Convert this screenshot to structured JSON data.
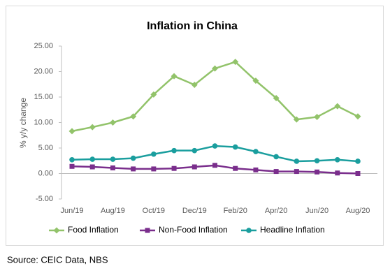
{
  "chart_data": {
    "type": "line",
    "title": "Inflation in China",
    "y_label": "% y/y change",
    "categories": [
      "Jun/19",
      null,
      "Aug/19",
      null,
      "Oct/19",
      null,
      "Dec/19",
      null,
      "Feb/20",
      null,
      "Apr/20",
      null,
      "Jun/20",
      null,
      "Aug/20"
    ],
    "series": [
      {
        "name": "Food Inflation",
        "color": "#92c36a",
        "marker": "diamond",
        "values": [
          8.3,
          9.1,
          10.0,
          11.2,
          15.5,
          19.1,
          17.4,
          20.6,
          21.9,
          18.2,
          14.8,
          10.6,
          11.1,
          13.2,
          11.2
        ]
      },
      {
        "name": "Non-Food Inflation",
        "color": "#7a2e8c",
        "marker": "square",
        "values": [
          1.4,
          1.3,
          1.1,
          0.9,
          0.9,
          1.0,
          1.3,
          1.6,
          1.0,
          0.7,
          0.4,
          0.4,
          0.3,
          0.1,
          0.0
        ]
      },
      {
        "name": "Headline Inflation",
        "color": "#1a9e9e",
        "marker": "circle",
        "values": [
          2.7,
          2.8,
          2.8,
          3.0,
          3.8,
          4.5,
          4.5,
          5.4,
          5.2,
          4.3,
          3.3,
          2.4,
          2.5,
          2.7,
          2.4
        ]
      }
    ],
    "ylim": [
      -5,
      25
    ],
    "yticks": [
      {
        "value": -5,
        "label": "-5.00"
      },
      {
        "value": 0,
        "label": "0.00"
      },
      {
        "value": 5,
        "label": "5.00"
      },
      {
        "value": 10,
        "label": "10.00"
      },
      {
        "value": 15,
        "label": "15.00"
      },
      {
        "value": 20,
        "label": "20.00"
      },
      {
        "value": 25,
        "label": "25.00"
      }
    ],
    "grid": false,
    "legend": "bottom",
    "source": "Source: CEIC Data, NBS"
  }
}
